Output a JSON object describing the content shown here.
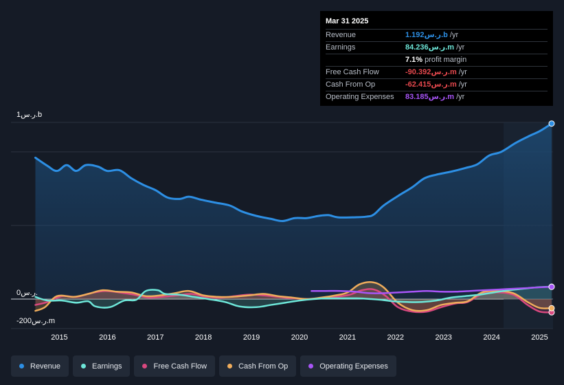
{
  "tooltip": {
    "date": "Mar 31 2025",
    "rows": [
      {
        "label": "Revenue",
        "value": "1.192ر.س.b",
        "unit": "/yr",
        "color": "#2d8fe4"
      },
      {
        "label": "Earnings",
        "value": "84.236ر.س.m",
        "unit": "/yr",
        "color": "#6ee7d9"
      },
      {
        "label": "",
        "value": "7.1%",
        "unit": "profit margin",
        "color": "#ffffff"
      },
      {
        "label": "Free Cash Flow",
        "value": "-90.392ر.س.m",
        "unit": "/yr",
        "color": "#e5484d"
      },
      {
        "label": "Cash From Op",
        "value": "-62.415ر.س.m",
        "unit": "/yr",
        "color": "#e5484d"
      },
      {
        "label": "Operating Expenses",
        "value": "83.185ر.س.m",
        "unit": "/yr",
        "color": "#a855f7"
      }
    ]
  },
  "legend": [
    {
      "label": "Revenue",
      "color": "#2d8fe4"
    },
    {
      "label": "Earnings",
      "color": "#6ee7d9"
    },
    {
      "label": "Free Cash Flow",
      "color": "#d9487f"
    },
    {
      "label": "Cash From Op",
      "color": "#f0ad5c"
    },
    {
      "label": "Operating Expenses",
      "color": "#a855f7"
    }
  ],
  "chart_data": {
    "type": "area",
    "y_unit_labels": {
      "top": "1ر.س.b",
      "zero": "0ر.س.",
      "bottom": "-200ر.س.m"
    },
    "ylim": [
      -200,
      1200
    ],
    "xlim": [
      2014.45,
      2025.25
    ],
    "x_ticks": [
      "2015",
      "2016",
      "2017",
      "2018",
      "2019",
      "2020",
      "2021",
      "2022",
      "2023",
      "2024",
      "2025"
    ],
    "series": [
      {
        "name": "Revenue",
        "color": "#2d8fe4",
        "points": [
          [
            2014.5,
            960
          ],
          [
            2014.75,
            905
          ],
          [
            2014.95,
            870
          ],
          [
            2015.15,
            910
          ],
          [
            2015.35,
            870
          ],
          [
            2015.55,
            910
          ],
          [
            2015.8,
            900
          ],
          [
            2016.0,
            870
          ],
          [
            2016.25,
            875
          ],
          [
            2016.5,
            820
          ],
          [
            2016.75,
            775
          ],
          [
            2017.0,
            740
          ],
          [
            2017.25,
            690
          ],
          [
            2017.5,
            680
          ],
          [
            2017.7,
            695
          ],
          [
            2017.95,
            675
          ],
          [
            2018.25,
            655
          ],
          [
            2018.55,
            635
          ],
          [
            2018.8,
            595
          ],
          [
            2019.1,
            565
          ],
          [
            2019.4,
            545
          ],
          [
            2019.65,
            530
          ],
          [
            2019.9,
            550
          ],
          [
            2020.15,
            550
          ],
          [
            2020.4,
            565
          ],
          [
            2020.6,
            570
          ],
          [
            2020.8,
            555
          ],
          [
            2021.1,
            555
          ],
          [
            2021.4,
            560
          ],
          [
            2021.55,
            575
          ],
          [
            2021.75,
            635
          ],
          [
            2022.05,
            700
          ],
          [
            2022.35,
            760
          ],
          [
            2022.6,
            820
          ],
          [
            2022.85,
            845
          ],
          [
            2023.15,
            865
          ],
          [
            2023.45,
            890
          ],
          [
            2023.7,
            915
          ],
          [
            2023.95,
            975
          ],
          [
            2024.2,
            1000
          ],
          [
            2024.5,
            1060
          ],
          [
            2024.8,
            1110
          ],
          [
            2025.0,
            1140
          ],
          [
            2025.25,
            1192
          ]
        ]
      },
      {
        "name": "Earnings",
        "color": "#6ee7d9",
        "points": [
          [
            2014.5,
            15
          ],
          [
            2014.75,
            -10
          ],
          [
            2015.05,
            -10
          ],
          [
            2015.35,
            -25
          ],
          [
            2015.6,
            -15
          ],
          [
            2015.75,
            -50
          ],
          [
            2016.05,
            -55
          ],
          [
            2016.35,
            -10
          ],
          [
            2016.6,
            -5
          ],
          [
            2016.8,
            55
          ],
          [
            2017.05,
            60
          ],
          [
            2017.2,
            35
          ],
          [
            2017.5,
            30
          ],
          [
            2017.8,
            15
          ],
          [
            2018.1,
            0
          ],
          [
            2018.45,
            -20
          ],
          [
            2018.75,
            -50
          ],
          [
            2019.1,
            -55
          ],
          [
            2019.4,
            -40
          ],
          [
            2019.7,
            -25
          ],
          [
            2020.0,
            -10
          ],
          [
            2020.3,
            0
          ],
          [
            2020.6,
            5
          ],
          [
            2020.9,
            5
          ],
          [
            2021.2,
            5
          ],
          [
            2021.5,
            0
          ],
          [
            2021.7,
            -5
          ],
          [
            2021.95,
            -15
          ],
          [
            2022.25,
            -20
          ],
          [
            2022.55,
            -20
          ],
          [
            2022.85,
            -10
          ],
          [
            2023.15,
            10
          ],
          [
            2023.45,
            20
          ],
          [
            2023.75,
            30
          ],
          [
            2024.05,
            45
          ],
          [
            2024.35,
            60
          ],
          [
            2024.65,
            70
          ],
          [
            2024.95,
            80
          ],
          [
            2025.25,
            84
          ]
        ]
      },
      {
        "name": "Free Cash Flow",
        "color": "#d9487f",
        "points": [
          [
            2014.5,
            -40
          ],
          [
            2014.75,
            -20
          ],
          [
            2015.05,
            20
          ],
          [
            2015.35,
            15
          ],
          [
            2015.65,
            40
          ],
          [
            2015.95,
            55
          ],
          [
            2016.25,
            45
          ],
          [
            2016.55,
            30
          ],
          [
            2016.85,
            10
          ],
          [
            2017.15,
            15
          ],
          [
            2017.45,
            25
          ],
          [
            2017.75,
            35
          ],
          [
            2018.05,
            15
          ],
          [
            2018.35,
            10
          ],
          [
            2018.65,
            20
          ],
          [
            2018.95,
            30
          ],
          [
            2019.25,
            25
          ],
          [
            2019.55,
            15
          ],
          [
            2019.85,
            5
          ],
          [
            2020.15,
            0
          ],
          [
            2020.45,
            5
          ],
          [
            2020.75,
            15
          ],
          [
            2021.05,
            30
          ],
          [
            2021.3,
            60
          ],
          [
            2021.55,
            65
          ],
          [
            2021.8,
            20
          ],
          [
            2022.05,
            -55
          ],
          [
            2022.35,
            -85
          ],
          [
            2022.65,
            -85
          ],
          [
            2022.95,
            -55
          ],
          [
            2023.25,
            -30
          ],
          [
            2023.5,
            -20
          ],
          [
            2023.8,
            35
          ],
          [
            2024.1,
            45
          ],
          [
            2024.45,
            30
          ],
          [
            2024.75,
            -40
          ],
          [
            2025.0,
            -85
          ],
          [
            2025.25,
            -90
          ]
        ]
      },
      {
        "name": "Cash From Op",
        "color": "#f0ad5c",
        "points": [
          [
            2014.5,
            -80
          ],
          [
            2014.7,
            -55
          ],
          [
            2014.95,
            20
          ],
          [
            2015.3,
            15
          ],
          [
            2015.6,
            35
          ],
          [
            2015.9,
            60
          ],
          [
            2016.2,
            50
          ],
          [
            2016.5,
            45
          ],
          [
            2016.8,
            20
          ],
          [
            2017.1,
            25
          ],
          [
            2017.4,
            40
          ],
          [
            2017.7,
            55
          ],
          [
            2018.0,
            25
          ],
          [
            2018.3,
            15
          ],
          [
            2018.6,
            15
          ],
          [
            2018.95,
            25
          ],
          [
            2019.25,
            35
          ],
          [
            2019.55,
            20
          ],
          [
            2019.85,
            10
          ],
          [
            2020.15,
            0
          ],
          [
            2020.45,
            10
          ],
          [
            2020.75,
            25
          ],
          [
            2021.0,
            45
          ],
          [
            2021.25,
            100
          ],
          [
            2021.5,
            115
          ],
          [
            2021.75,
            80
          ],
          [
            2022.05,
            -25
          ],
          [
            2022.35,
            -75
          ],
          [
            2022.65,
            -75
          ],
          [
            2022.95,
            -40
          ],
          [
            2023.25,
            -25
          ],
          [
            2023.5,
            -15
          ],
          [
            2023.8,
            45
          ],
          [
            2024.1,
            55
          ],
          [
            2024.45,
            40
          ],
          [
            2024.75,
            -20
          ],
          [
            2025.0,
            -60
          ],
          [
            2025.25,
            -62
          ]
        ]
      },
      {
        "name": "Operating Expenses",
        "color": "#a855f7",
        "points": [
          [
            2020.25,
            55
          ],
          [
            2020.55,
            55
          ],
          [
            2020.85,
            55
          ],
          [
            2021.15,
            50
          ],
          [
            2021.45,
            40
          ],
          [
            2021.75,
            40
          ],
          [
            2022.05,
            45
          ],
          [
            2022.35,
            50
          ],
          [
            2022.65,
            55
          ],
          [
            2022.95,
            50
          ],
          [
            2023.25,
            50
          ],
          [
            2023.55,
            55
          ],
          [
            2023.85,
            60
          ],
          [
            2024.15,
            65
          ],
          [
            2024.45,
            70
          ],
          [
            2024.75,
            75
          ],
          [
            2025.0,
            80
          ],
          [
            2025.25,
            83
          ]
        ]
      }
    ]
  }
}
